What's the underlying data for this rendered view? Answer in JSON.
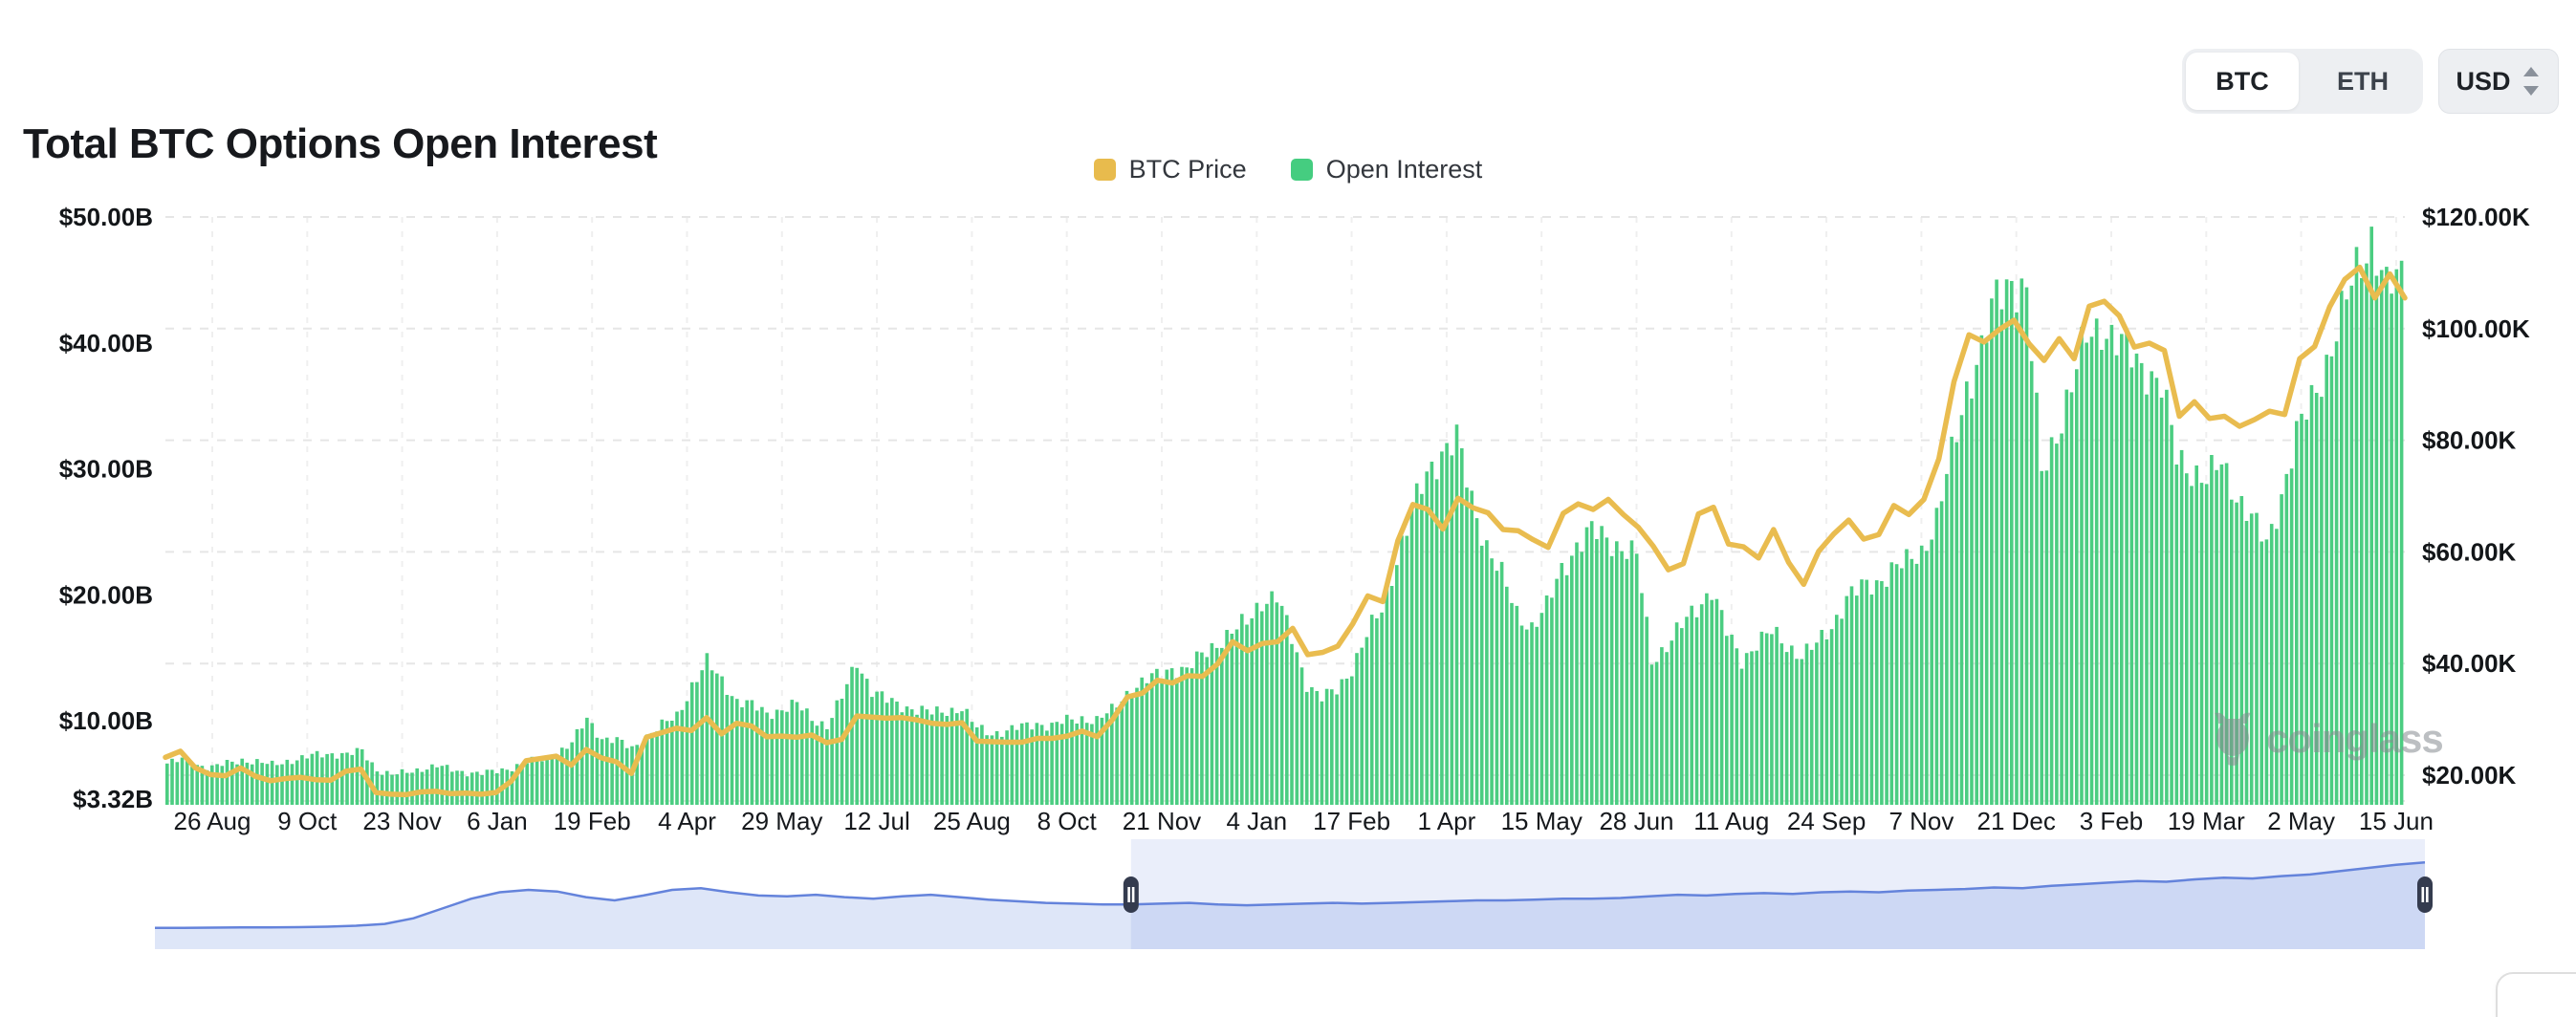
{
  "header": {
    "title": "Total BTC Options Open Interest",
    "asset_toggle": {
      "options": [
        "BTC",
        "ETH"
      ],
      "selected": "BTC"
    },
    "currency_select": {
      "value": "USD"
    }
  },
  "legend": [
    {
      "label": "BTC Price",
      "color": "#E8BB4D"
    },
    {
      "label": "Open Interest",
      "color": "#45CD80"
    }
  ],
  "watermark": "coinglass",
  "chart_data": {
    "type": "bar+line dual-axis time series with range navigator",
    "title": "Total BTC Options Open Interest",
    "x_tick_labels": [
      "26 Aug",
      "9 Oct",
      "23 Nov",
      "6 Jan",
      "19 Feb",
      "4 Apr",
      "29 May",
      "12 Jul",
      "25 Aug",
      "8 Oct",
      "21 Nov",
      "4 Jan",
      "17 Feb",
      "1 Apr",
      "15 May",
      "28 Jun",
      "11 Aug",
      "24 Sep",
      "7 Nov",
      "21 Dec",
      "3 Feb",
      "19 Mar",
      "2 May",
      "15 Jun"
    ],
    "left_axis": {
      "name": "Open Interest",
      "unit": "$B",
      "min": 3.32,
      "max": 50,
      "tick_labels": [
        "$50.00B",
        "$40.00B",
        "$30.00B",
        "$20.00B",
        "$10.00B",
        "$3.32B"
      ],
      "tick_values": [
        50,
        40,
        30,
        20,
        10,
        3.32
      ]
    },
    "right_axis": {
      "name": "BTC Price",
      "unit": "$K",
      "tick_labels": [
        "$120.00K",
        "$100.00K",
        "$80.00K",
        "$60.00K",
        "$40.00K",
        "$20.00K"
      ],
      "tick_values": [
        120,
        100,
        80,
        60,
        40,
        20
      ]
    },
    "grid": "horizontal dashed at right-axis ticks, faint vertical dashed at x ticks",
    "legend_position": "top-center",
    "series": [
      {
        "name": "Open Interest",
        "type": "bar",
        "axis": "left",
        "color": "#4BCD81",
        "unit": "$B",
        "cadence": "weekly, Aug 2022 - Jun 2025",
        "values": [
          6.6,
          6.9,
          6.5,
          6.3,
          6.6,
          6.9,
          6.7,
          6.5,
          6.8,
          7.0,
          7.3,
          7.4,
          7.3,
          7.6,
          6.1,
          5.7,
          5.9,
          6.2,
          6.4,
          6.1,
          5.9,
          5.8,
          6.0,
          6.3,
          6.7,
          6.9,
          7.4,
          8.2,
          10.2,
          8.6,
          8.4,
          7.8,
          8.8,
          9.6,
          10.4,
          12.8,
          14.6,
          13.2,
          11.6,
          11.2,
          10.6,
          10.9,
          11.3,
          10.2,
          9.6,
          11.8,
          14.8,
          12.4,
          11.6,
          11.2,
          10.9,
          10.6,
          10.8,
          11.0,
          9.4,
          9.0,
          9.2,
          9.5,
          9.8,
          9.6,
          10.0,
          10.2,
          10.0,
          10.8,
          12.2,
          13.0,
          13.6,
          14.2,
          14.0,
          15.2,
          16.2,
          17.0,
          17.8,
          19.6,
          19.8,
          16.5,
          13.0,
          11.8,
          12.4,
          14.2,
          16.8,
          18.8,
          23.0,
          26.5,
          29.5,
          31.5,
          32.3,
          27.5,
          24.0,
          21.5,
          18.5,
          17.5,
          19.0,
          22.0,
          24.0,
          25.0,
          24.5,
          23.8,
          23.0,
          14.8,
          16.0,
          17.5,
          19.0,
          20.5,
          17.0,
          14.8,
          16.2,
          17.0,
          16.0,
          15.2,
          16.0,
          17.5,
          19.8,
          20.5,
          21.0,
          22.0,
          22.5,
          23.5,
          26.0,
          31.0,
          36.5,
          39.5,
          43.5,
          45.2,
          44.0,
          29.5,
          33.0,
          36.5,
          40.5,
          41.5,
          40.0,
          39.0,
          38.0,
          36.5,
          31.0,
          30.0,
          29.0,
          30.5,
          28.0,
          26.0,
          24.0,
          28.0,
          32.5,
          35.5,
          38.5,
          42.0,
          46.0,
          48.5,
          44.0,
          45.5
        ]
      },
      {
        "name": "BTC Price",
        "type": "line",
        "axis": "right",
        "color": "#E9BC4F",
        "unit": "$K",
        "cadence": "weekly, Aug 2022 - Jun 2025",
        "values": [
          23.2,
          24.3,
          21.3,
          20.1,
          19.9,
          21.3,
          19.8,
          19.0,
          19.4,
          19.6,
          19.2,
          19.1,
          20.7,
          21.1,
          16.9,
          16.6,
          16.5,
          17.0,
          17.1,
          16.7,
          16.8,
          16.6,
          16.9,
          18.9,
          22.6,
          23.0,
          23.4,
          21.8,
          24.6,
          23.1,
          22.4,
          20.3,
          26.8,
          27.6,
          28.4,
          28.0,
          30.3,
          27.4,
          29.3,
          28.8,
          26.9,
          27.0,
          26.8,
          27.2,
          25.8,
          26.4,
          30.6,
          30.4,
          30.2,
          30.3,
          29.9,
          29.3,
          29.1,
          29.4,
          26.1,
          26.0,
          25.9,
          25.9,
          26.6,
          26.6,
          27.0,
          27.9,
          26.9,
          29.9,
          34.0,
          34.7,
          37.0,
          36.5,
          37.8,
          37.7,
          39.9,
          43.9,
          42.3,
          43.6,
          43.9,
          46.3,
          41.6,
          42.0,
          43.1,
          47.1,
          52.1,
          51.1,
          62.0,
          68.5,
          67.6,
          64.1,
          69.6,
          67.9,
          67.0,
          64.0,
          63.8,
          62.2,
          60.8,
          66.9,
          68.6,
          67.6,
          69.4,
          66.7,
          64.4,
          61.0,
          56.8,
          57.9,
          66.8,
          68.0,
          61.4,
          60.9,
          58.9,
          64.0,
          58.1,
          54.2,
          60.1,
          63.2,
          65.7,
          62.3,
          63.1,
          68.3,
          66.7,
          69.4,
          76.7,
          90.5,
          98.9,
          97.6,
          99.8,
          101.5,
          97.3,
          94.3,
          98.2,
          94.6,
          104.0,
          104.9,
          102.3,
          96.7,
          97.4,
          96.1,
          84.3,
          86.9,
          83.9,
          84.3,
          82.5,
          83.7,
          85.2,
          84.6,
          94.6,
          96.8,
          103.9,
          108.8,
          111.0,
          105.5,
          109.8,
          105.5
        ]
      }
    ],
    "navigator": {
      "selection_start_frac": 0.43,
      "selection_end_frac": 1.0,
      "area_color": "#DEE6F8",
      "line_color": "#6483DB",
      "handle_color": "#343B4E",
      "values": [
        6.0,
        6.1,
        6.2,
        6.3,
        6.4,
        6.5,
        6.8,
        7.4,
        8.5,
        12,
        18,
        24,
        28,
        29.5,
        28.5,
        25,
        23,
        26,
        29.5,
        30.5,
        28,
        26,
        25.5,
        26.5,
        25,
        24,
        25.5,
        26.5,
        25,
        23.5,
        22.5,
        21.5,
        21,
        20.5,
        20.5,
        21,
        21.5,
        20.5,
        20,
        20.5,
        21,
        21.5,
        21,
        21.5,
        22,
        22.5,
        23,
        23,
        23.5,
        24,
        24,
        24.5,
        25.5,
        26.5,
        26,
        27,
        27.5,
        27,
        28,
        28.5,
        28,
        29,
        29.5,
        30,
        31,
        30.5,
        32,
        33,
        34,
        35,
        34.5,
        36,
        37,
        36.5,
        38,
        39,
        41,
        43,
        45,
        46.5
      ]
    }
  }
}
